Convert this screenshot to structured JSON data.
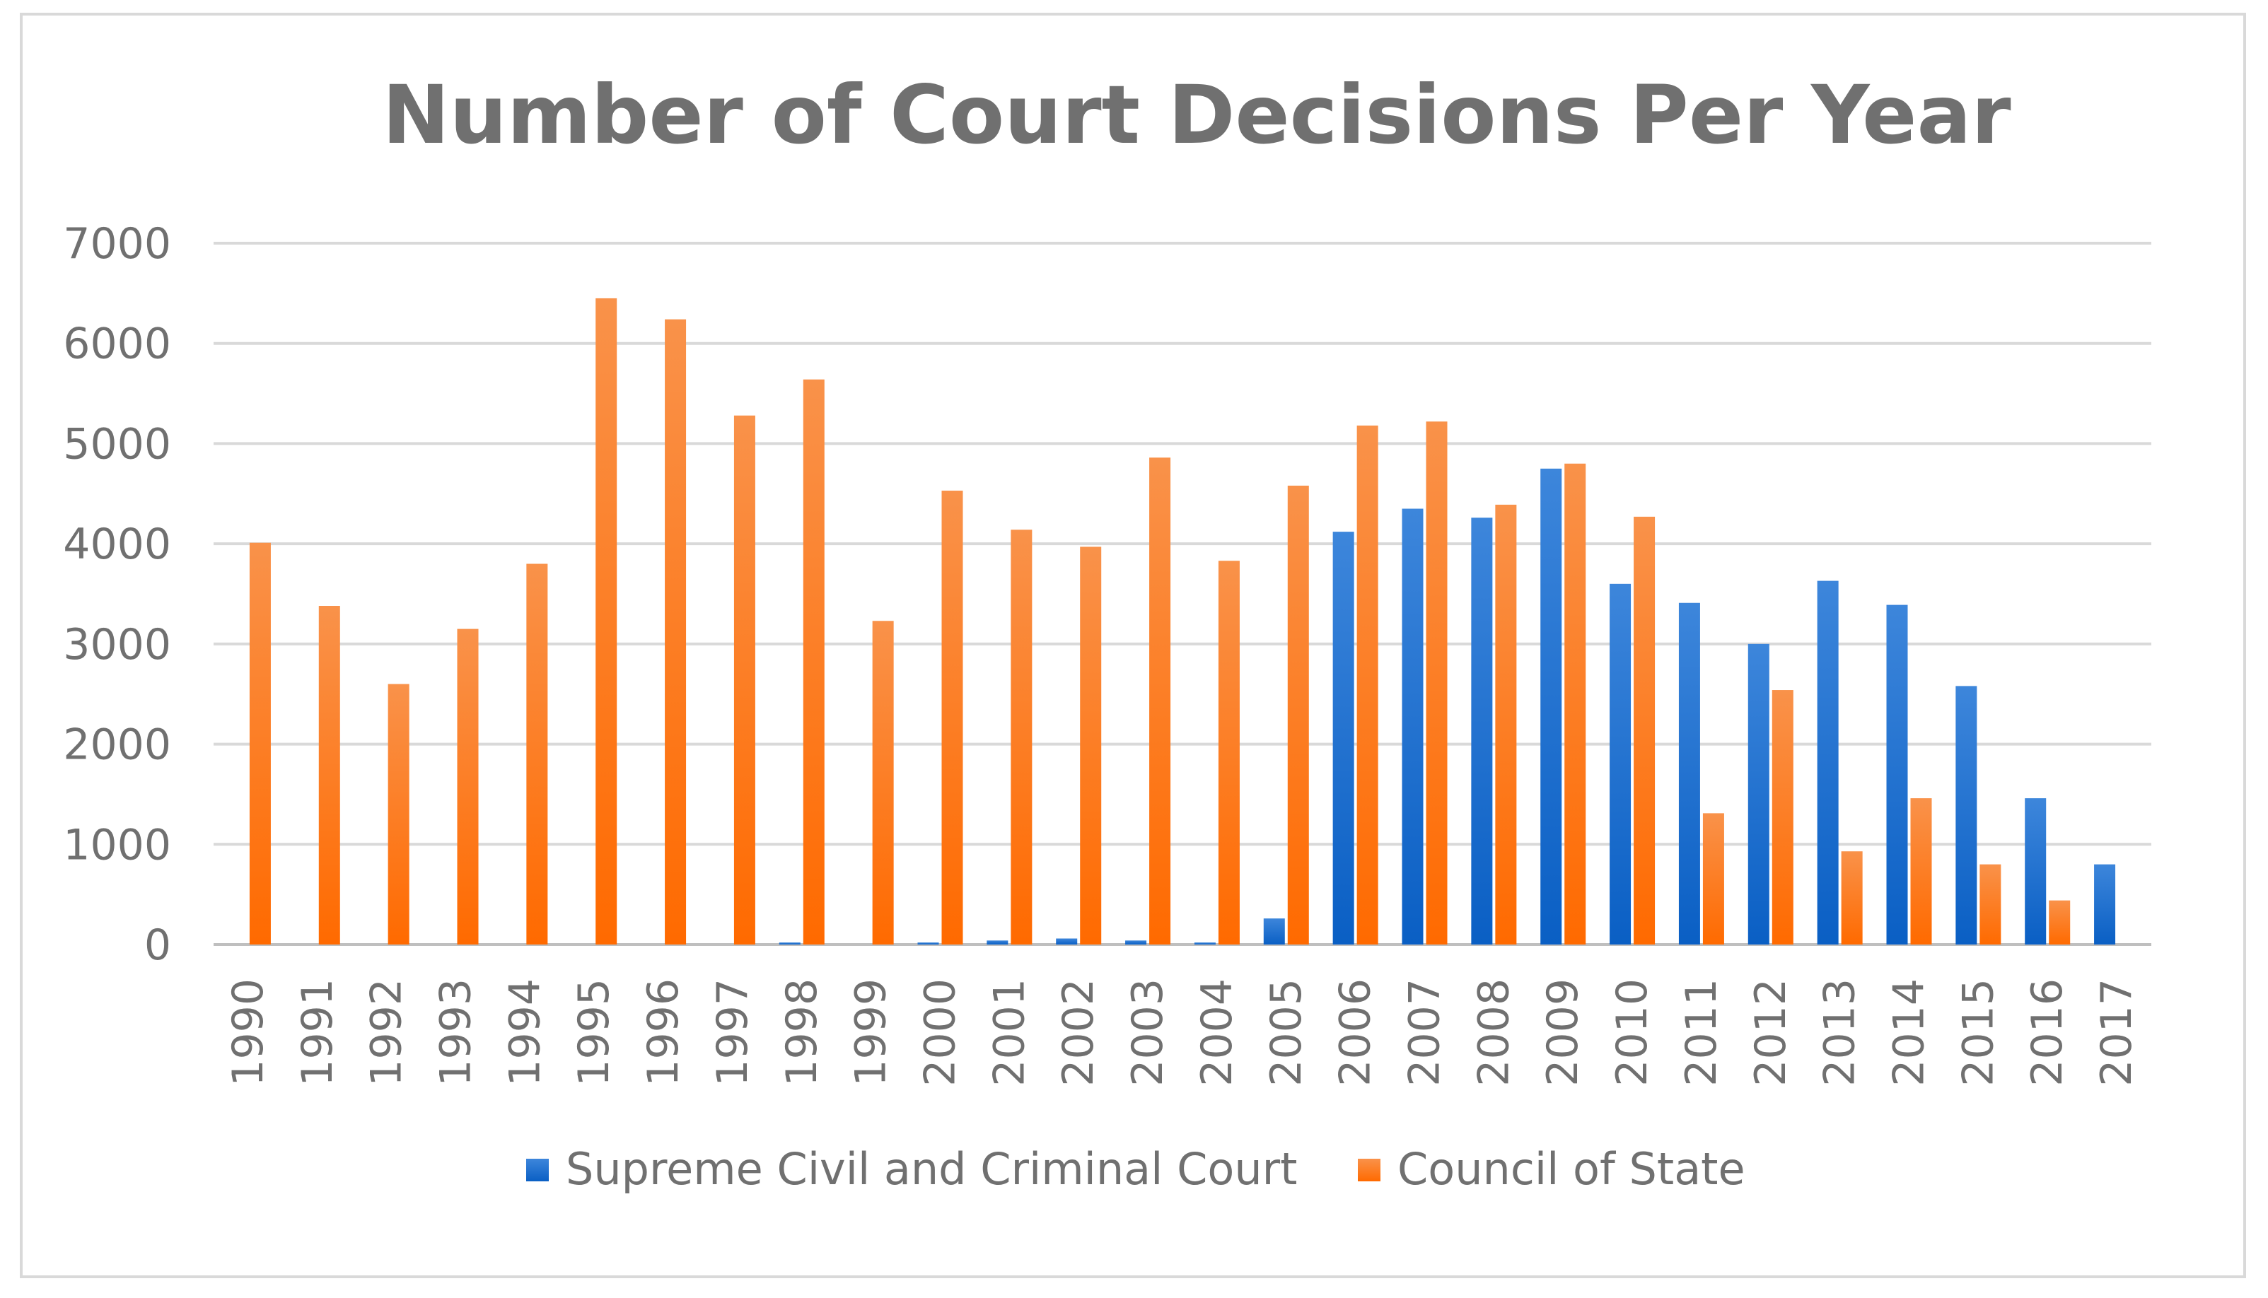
{
  "chart_data": {
    "type": "bar",
    "title": "Number of Court Decisions Per Year",
    "xlabel": "",
    "ylabel": "",
    "ylim": [
      0,
      7000
    ],
    "yticks": [
      0,
      1000,
      2000,
      3000,
      4000,
      5000,
      6000,
      7000
    ],
    "grid": true,
    "legend": "bottom",
    "categories": [
      "1990",
      "1991",
      "1992",
      "1993",
      "1994",
      "1995",
      "1996",
      "1997",
      "1998",
      "1999",
      "2000",
      "2001",
      "2002",
      "2003",
      "2004",
      "2005",
      "2006",
      "2007",
      "2008",
      "2009",
      "2010",
      "2011",
      "2012",
      "2013",
      "2014",
      "2015",
      "2016",
      "2017"
    ],
    "series": [
      {
        "name": "Supreme Civil and Criminal Court",
        "color": "#2e75d6",
        "values": [
          0,
          0,
          0,
          0,
          0,
          0,
          0,
          0,
          20,
          0,
          20,
          40,
          60,
          40,
          20,
          260,
          4120,
          4350,
          4260,
          4750,
          3600,
          3410,
          3000,
          3630,
          3390,
          2580,
          1460,
          800
        ]
      },
      {
        "name": "Council of State",
        "color": "#f47b20",
        "values": [
          4010,
          3380,
          2600,
          3150,
          3800,
          6450,
          6240,
          5280,
          5640,
          3230,
          4530,
          4140,
          3970,
          4860,
          3830,
          4580,
          5180,
          5220,
          4390,
          4800,
          4270,
          1310,
          2540,
          930,
          1460,
          800,
          440,
          0
        ]
      }
    ]
  }
}
